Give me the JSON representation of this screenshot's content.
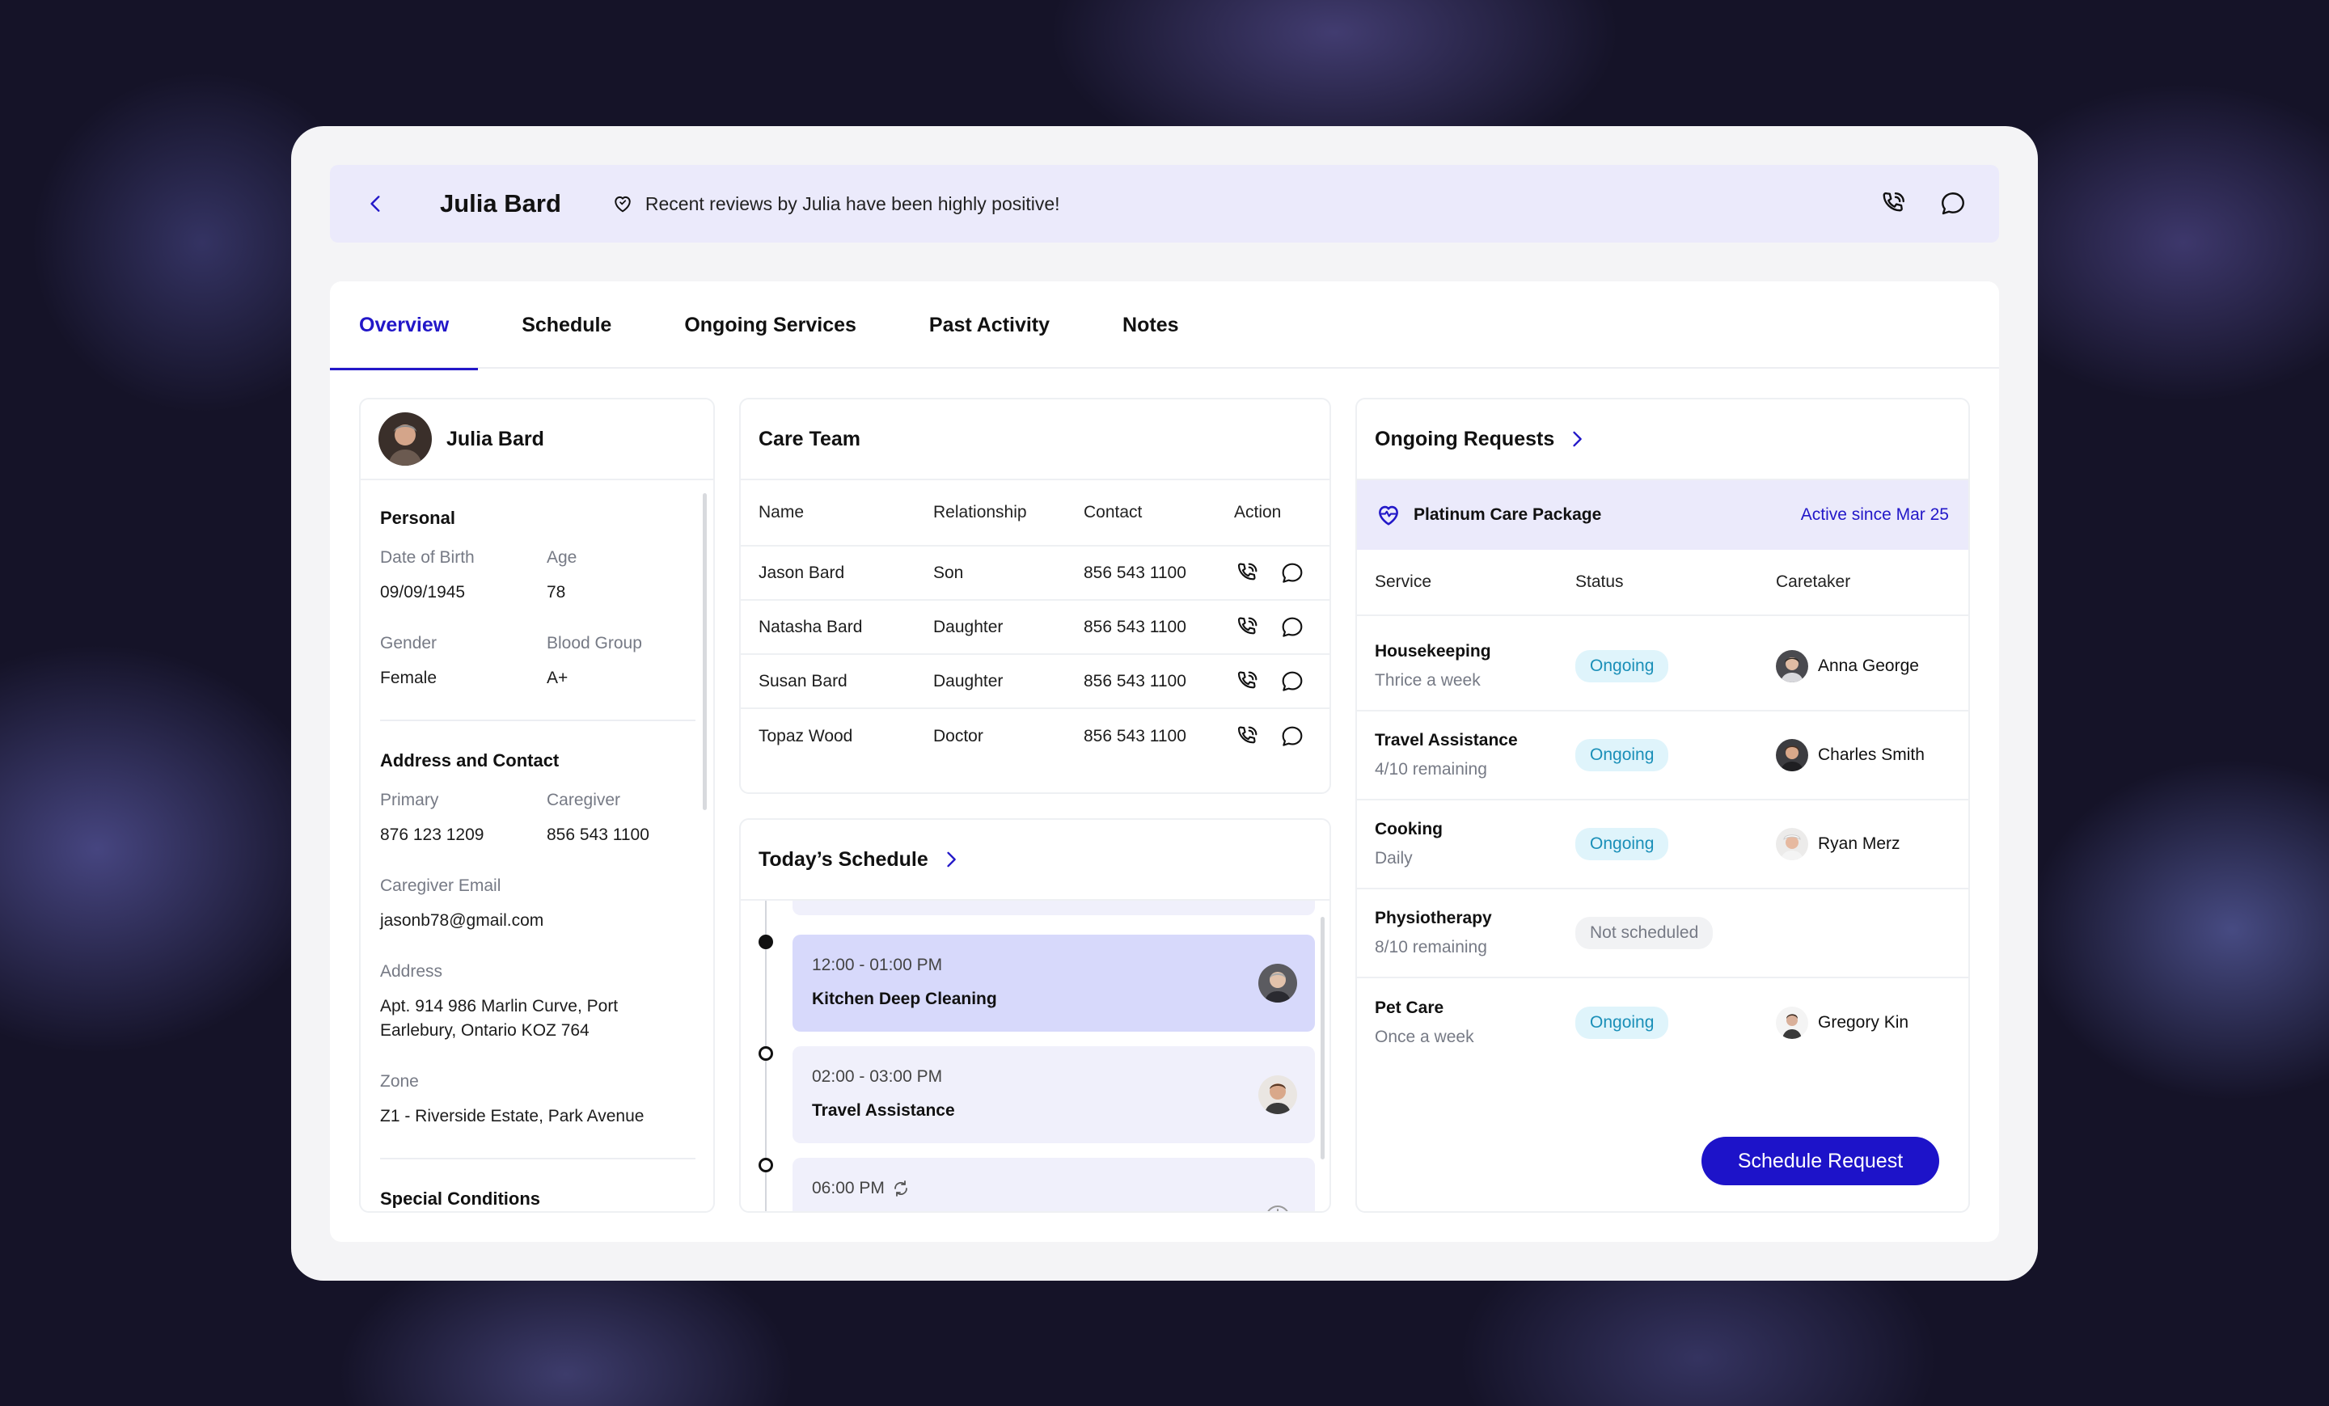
{
  "header": {
    "name": "Julia Bard",
    "note": "Recent reviews by Julia have been highly positive!"
  },
  "tabs": [
    {
      "label": "Overview"
    },
    {
      "label": "Schedule"
    },
    {
      "label": "Ongoing Services"
    },
    {
      "label": "Past Activity"
    },
    {
      "label": "Notes"
    }
  ],
  "profile": {
    "name": "Julia Bard",
    "personal_title": "Personal",
    "dob_label": "Date of Birth",
    "dob": "09/09/1945",
    "age_label": "Age",
    "age": "78",
    "gender_label": "Gender",
    "gender": "Female",
    "blood_label": "Blood Group",
    "blood": "A+",
    "contact_title": "Address and Contact",
    "primary_label": "Primary",
    "primary": "876 123 1209",
    "caregiver_label": "Caregiver",
    "caregiver": "856 543 1100",
    "email_label": "Caregiver Email",
    "email": "jasonb78@gmail.com",
    "address_label": "Address",
    "address": "Apt. 914 986 Marlin Curve, Port Earlebury, Ontario KOZ 764",
    "zone_label": "Zone",
    "zone": "Z1 - Riverside Estate, Park Avenue",
    "conditions_title": "Special Conditions"
  },
  "care_team": {
    "title": "Care Team",
    "columns": [
      "Name",
      "Relationship",
      "Contact",
      "Action"
    ],
    "rows": [
      {
        "name": "Jason Bard",
        "relationship": "Son",
        "contact": "856 543 1100"
      },
      {
        "name": "Natasha Bard",
        "relationship": "Daughter",
        "contact": "856 543 1100"
      },
      {
        "name": "Susan Bard",
        "relationship": "Daughter",
        "contact": "856 543 1100"
      },
      {
        "name": "Topaz Wood",
        "relationship": "Doctor",
        "contact": "856 543 1100"
      }
    ]
  },
  "schedule": {
    "title": "Today’s Schedule",
    "events": [
      {
        "time": "12:00 - 01:00 PM",
        "title": "Kitchen Deep Cleaning"
      },
      {
        "time": "02:00 - 03:00 PM",
        "title": "Travel Assistance"
      },
      {
        "time": "06:00 PM",
        "title": ""
      }
    ]
  },
  "requests": {
    "title": "Ongoing Requests",
    "package_name": "Platinum Care Package",
    "package_since": "Active since Mar 25",
    "columns": [
      "Service",
      "Status",
      "Caretaker"
    ],
    "rows": [
      {
        "service": "Housekeeping",
        "frequency": "Thrice a week",
        "status": "Ongoing",
        "caretaker": "Anna George"
      },
      {
        "service": "Travel Assistance",
        "frequency": "4/10 remaining",
        "status": "Ongoing",
        "caretaker": "Charles Smith"
      },
      {
        "service": "Cooking",
        "frequency": "Daily",
        "status": "Ongoing",
        "caretaker": "Ryan Merz"
      },
      {
        "service": "Physiotherapy",
        "frequency": "8/10 remaining",
        "status": "Not scheduled",
        "caretaker": ""
      },
      {
        "service": "Pet Care",
        "frequency": "Once a week",
        "status": "Ongoing",
        "caretaker": "Gregory Kin"
      }
    ],
    "button_label": "Schedule Request"
  },
  "colors": {
    "accent": "#2217c8",
    "header_bg": "#ebeafb",
    "ongoing_bg": "#dff4fb",
    "ongoing_text": "#1a8fb8"
  },
  "icons": [
    "chevron-left-icon",
    "heart-icon",
    "phone-icon",
    "chat-icon",
    "chevron-right-icon",
    "heart-pulse-icon",
    "repeat-icon",
    "download-icon"
  ]
}
